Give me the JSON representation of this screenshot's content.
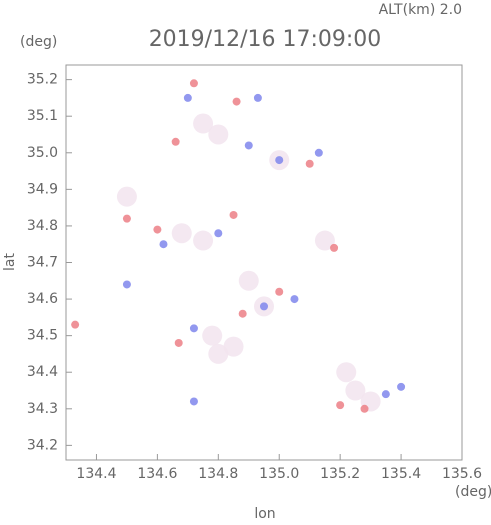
{
  "chart_data": {
    "type": "scatter",
    "title": "2019/12/16 17:09:00",
    "subtitle": "ALT(km) 2.0",
    "x_label": "lon",
    "y_label": "lat",
    "x_unit": "(deg)",
    "y_unit": "(deg)",
    "xlim": [
      134.3,
      135.6
    ],
    "ylim": [
      34.16,
      35.24
    ],
    "xticks": [
      134.4,
      134.6,
      134.8,
      {
        "value": 135,
        "label": "135.0"
      },
      135.2,
      135.4,
      135.6
    ],
    "yticks": [
      34.2,
      34.3,
      34.4,
      34.5,
      34.6,
      34.7,
      34.8,
      34.9,
      {
        "value": 35,
        "label": "35.0"
      },
      35.1,
      35.2
    ],
    "series": [
      {
        "color": "#f2e4ee",
        "x": [
          134.75,
          134.8,
          134.5,
          134.68,
          134.75,
          135.15,
          134.9,
          134.78,
          134.85,
          134.8,
          135.22,
          135.25,
          135.3,
          134.95,
          135.0
        ],
        "y": [
          35.08,
          35.05,
          34.88,
          34.78,
          34.76,
          34.76,
          34.65,
          34.5,
          34.47,
          34.45,
          34.4,
          34.35,
          34.32,
          34.58,
          34.98
        ]
      },
      {
        "color": "#7f86ec",
        "x": [
          134.7,
          134.93,
          134.9,
          135.0,
          135.13,
          134.8,
          134.95,
          134.72,
          134.5,
          134.72,
          135.35,
          135.4,
          135.05,
          134.62
        ],
        "y": [
          35.15,
          35.15,
          35.02,
          34.98,
          35.0,
          34.78,
          34.58,
          34.52,
          34.64,
          34.32,
          34.34,
          34.36,
          34.6,
          34.75
        ]
      },
      {
        "color": "#ec7f86",
        "x": [
          134.72,
          134.86,
          135.1,
          134.66,
          134.5,
          134.85,
          135.18,
          135.0,
          134.67,
          134.33,
          135.2,
          135.28,
          134.88,
          134.6
        ],
        "y": [
          35.19,
          35.14,
          34.97,
          35.03,
          34.82,
          34.83,
          34.74,
          34.62,
          34.48,
          34.53,
          34.31,
          34.3,
          34.56,
          34.79
        ]
      }
    ]
  }
}
